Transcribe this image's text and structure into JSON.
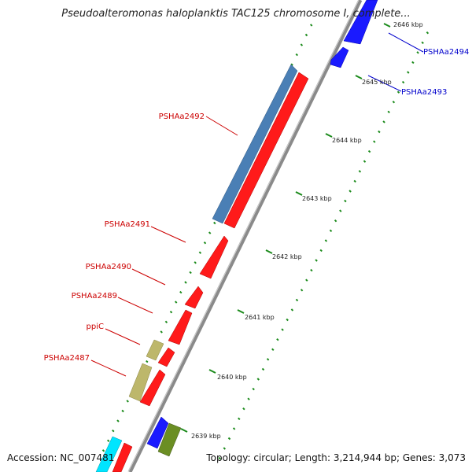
{
  "title": "Pseudoalteromonas haloplanktis TAC125 chromosome I, complete...",
  "accession": "Accession: NC_007481",
  "summary": "Topology: circular; Length: 3,214,944 bp; Genes: 3,073",
  "kbp_ticks": [
    "2646 kbp",
    "2645 kbp",
    "2644 kbp",
    "2643 kbp",
    "2642 kbp",
    "2641 kbp",
    "2640 kbp",
    "2639 kbp"
  ],
  "gene_labels": [
    {
      "text": "PSHAa2494",
      "color": "#0000cc"
    },
    {
      "text": "PSHAa2493",
      "color": "#0000cc"
    },
    {
      "text": "PSHAa2492",
      "color": "#cc0000"
    },
    {
      "text": "PSHAa2491",
      "color": "#cc0000"
    },
    {
      "text": "PSHAa2490",
      "color": "#cc0000"
    },
    {
      "text": "PSHAa2489",
      "color": "#cc0000"
    },
    {
      "text": "ppiC",
      "color": "#cc0000"
    },
    {
      "text": "PSHAa2487",
      "color": "#cc0000"
    }
  ],
  "colors": {
    "forward_cds": "#ff1a1a",
    "reverse_cds": "#1a1aff",
    "rrna": "#4a7fb5",
    "khaki": "#bdb76b",
    "olive": "#6b8e23",
    "cyan": "#00e5ff",
    "backbone": "#808080",
    "dots": "#1a8a1a"
  }
}
